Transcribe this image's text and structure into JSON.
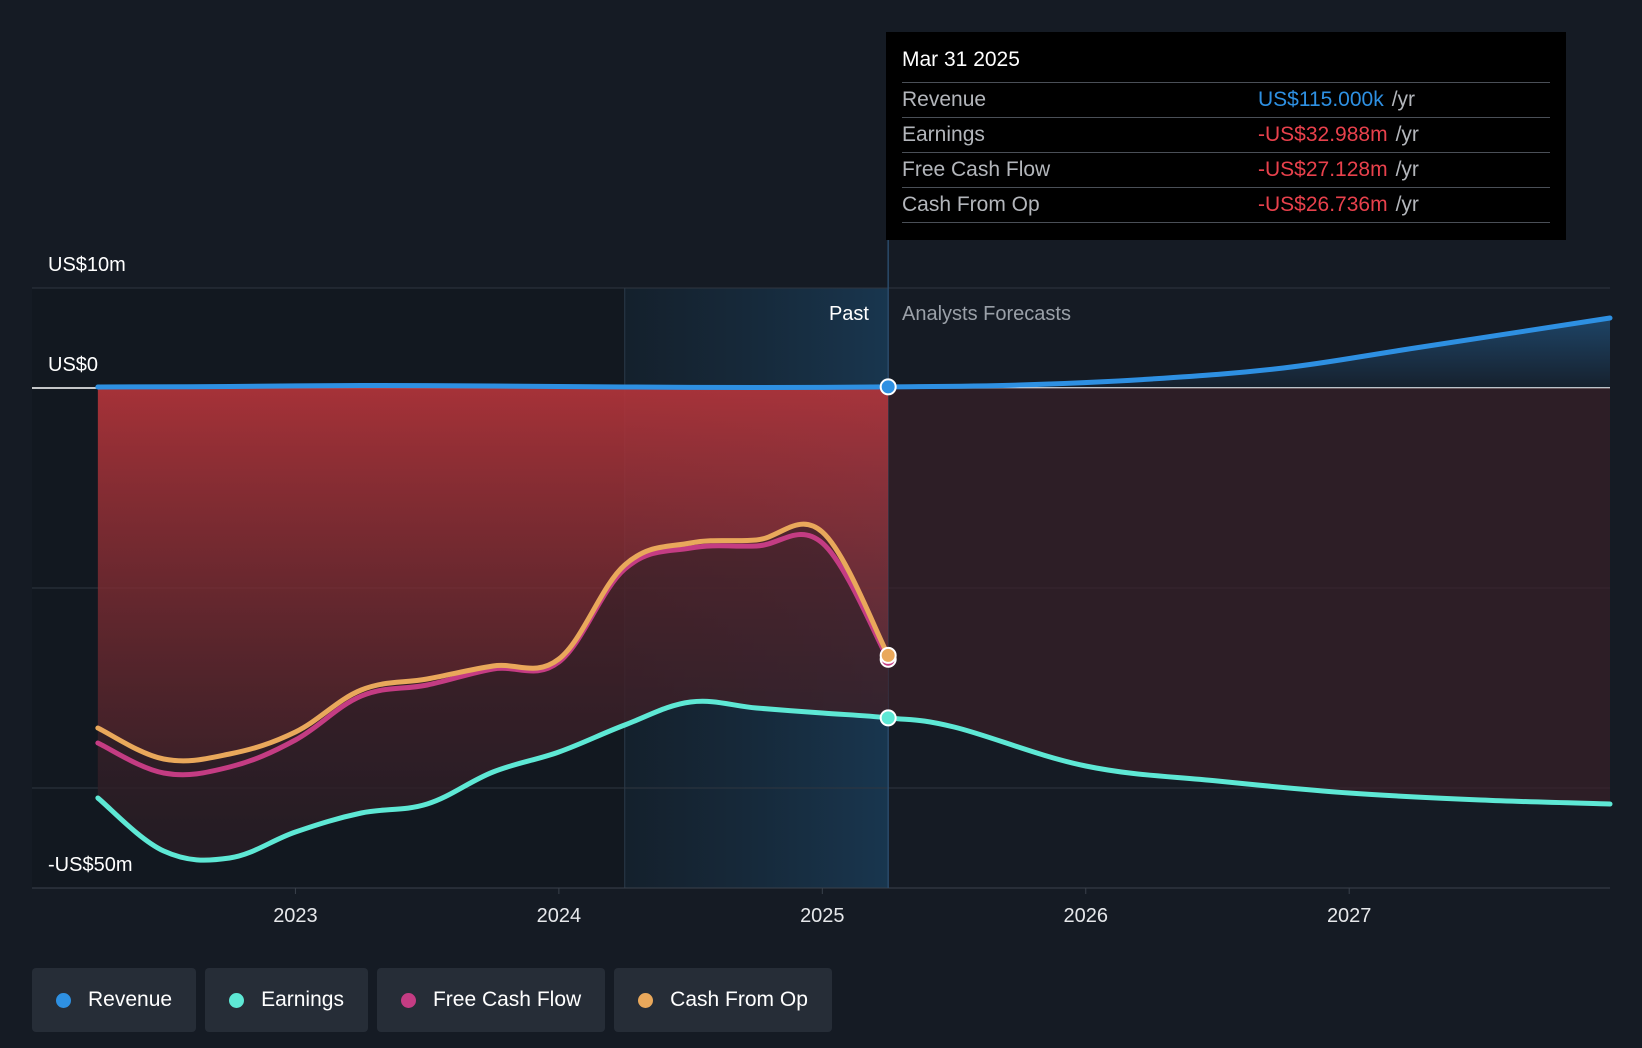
{
  "chart_data": {
    "type": "line",
    "y_axis_labels": [
      "US$10m",
      "US$0",
      "-US$50m"
    ],
    "ylim": [
      -50,
      10
    ],
    "grid": true,
    "x_ticks": [
      2023,
      2024,
      2025,
      2026,
      2027
    ],
    "x_tick_labels": [
      "2023",
      "2024",
      "2025",
      "2026",
      "2027"
    ],
    "xlim": [
      2022.0,
      2027.99
    ],
    "split_date": 2025.25,
    "highlight_start": 2024.25,
    "past_label": "Past",
    "forecast_label": "Analysts Forecasts",
    "series": [
      {
        "name": "Revenue",
        "color": "#2e90e2",
        "segment": "full",
        "x": [
          2022.25,
          2022.75,
          2023.25,
          2023.75,
          2024.25,
          2024.75,
          2025.25,
          2025.75,
          2026.25,
          2026.75,
          2027.25,
          2027.99
        ],
        "values": [
          0.1,
          0.15,
          0.25,
          0.2,
          0.1,
          0.05,
          0.115,
          0.3,
          0.9,
          2.0,
          4.0,
          7.0
        ]
      },
      {
        "name": "Earnings",
        "color": "#5ee8d5",
        "segment": "full",
        "x": [
          2022.25,
          2022.5,
          2022.75,
          2023.0,
          2023.25,
          2023.5,
          2023.75,
          2024.0,
          2024.25,
          2024.5,
          2024.75,
          2025.0,
          2025.25,
          2025.5,
          2026.0,
          2026.5,
          2027.0,
          2027.5,
          2027.99
        ],
        "values": [
          -41,
          -46.3,
          -47,
          -44.4,
          -42.5,
          -41.6,
          -38.4,
          -36.4,
          -33.7,
          -31.4,
          -32.0,
          -32.5,
          -32.988,
          -33.9,
          -37.8,
          -39.3,
          -40.5,
          -41.2,
          -41.6
        ]
      },
      {
        "name": "Free Cash Flow",
        "color": "#c43c83",
        "segment": "past",
        "x": [
          2022.25,
          2022.5,
          2022.75,
          2023.0,
          2023.25,
          2023.5,
          2023.75,
          2024.0,
          2024.25,
          2024.5,
          2024.75,
          2025.0,
          2025.25
        ],
        "values": [
          -35.5,
          -38.5,
          -37.9,
          -35.2,
          -30.8,
          -29.7,
          -28.1,
          -27.4,
          -18.1,
          -16.0,
          -15.8,
          -15.5,
          -27.128
        ]
      },
      {
        "name": "Cash From Op",
        "color": "#e9a85b",
        "segment": "past",
        "x": [
          2022.25,
          2022.5,
          2022.75,
          2023.0,
          2023.25,
          2023.5,
          2023.75,
          2024.0,
          2024.25,
          2024.5,
          2024.75,
          2025.0,
          2025.25
        ],
        "values": [
          -34.0,
          -37.1,
          -36.6,
          -34.4,
          -30.2,
          -29.1,
          -27.8,
          -27.1,
          -17.7,
          -15.5,
          -15.2,
          -14.4,
          -26.736
        ]
      }
    ]
  },
  "tooltip": {
    "date": "Mar 31 2025",
    "rows": [
      {
        "name": "Revenue",
        "value": "US$115.000k",
        "unit": "/yr",
        "color": "#2e90e2"
      },
      {
        "name": "Earnings",
        "value": "-US$32.988m",
        "unit": "/yr",
        "color": "#e8414c"
      },
      {
        "name": "Free Cash Flow",
        "value": "-US$27.128m",
        "unit": "/yr",
        "color": "#e8414c"
      },
      {
        "name": "Cash From Op",
        "value": "-US$26.736m",
        "unit": "/yr",
        "color": "#e8414c"
      }
    ]
  },
  "legend": [
    {
      "label": "Revenue",
      "color": "#2e90e2"
    },
    {
      "label": "Earnings",
      "color": "#5ee8d5"
    },
    {
      "label": "Free Cash Flow",
      "color": "#c43c83"
    },
    {
      "label": "Cash From Op",
      "color": "#e9a85b"
    }
  ]
}
